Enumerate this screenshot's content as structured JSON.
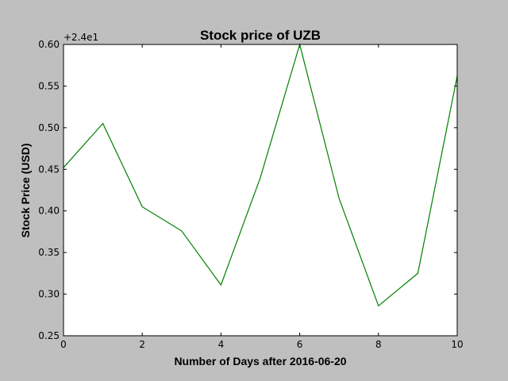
{
  "chart_data": {
    "type": "line",
    "title": "Stock price of UZB",
    "xlabel": "Number of Days after 2016-06-20",
    "ylabel": "Stock Price (USD)",
    "y_offset_label": "+2.4e1",
    "xlim": [
      0,
      10
    ],
    "ylim": [
      0.25,
      0.6
    ],
    "x_ticks": [
      0,
      2,
      4,
      6,
      8,
      10
    ],
    "x_tick_labels": [
      "0",
      "2",
      "4",
      "6",
      "8",
      "10"
    ],
    "y_ticks": [
      0.25,
      0.3,
      0.35,
      0.4,
      0.45,
      0.5,
      0.55,
      0.6
    ],
    "y_tick_labels": [
      "0.25",
      "0.30",
      "0.35",
      "0.40",
      "0.45",
      "0.50",
      "0.55",
      "0.60"
    ],
    "grid": false,
    "series": [
      {
        "color": "#008000",
        "x": [
          0,
          1,
          2,
          3,
          4,
          5,
          6,
          7,
          8,
          9,
          10
        ],
        "y": [
          0.452,
          0.505,
          0.405,
          0.376,
          0.311,
          0.44,
          0.6,
          0.415,
          0.286,
          0.325,
          0.562
        ]
      }
    ]
  }
}
